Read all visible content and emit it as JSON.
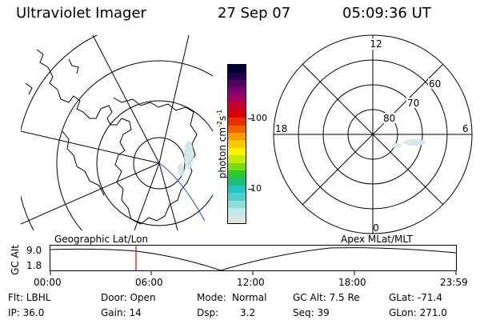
{
  "header": {
    "title": "Ultraviolet Imager",
    "date": "27 Sep 07",
    "time": "05:09:36 UT"
  },
  "colorbar": {
    "label": "photon cm-2s-1",
    "ticks": [
      "100",
      "10"
    ],
    "colors": [
      "#d9e3e3",
      "#bfe8e8",
      "#8fdada",
      "#4ed0d0",
      "#22c4c4",
      "#18c07a",
      "#2acb2a",
      "#78dc10",
      "#c8ea08",
      "#f8f400",
      "#f8c800",
      "#f89a00",
      "#f06200",
      "#e83000",
      "#d80000",
      "#c8002a",
      "#a8005a",
      "#80006f",
      "#50005f",
      "#20004a",
      "#000030"
    ]
  },
  "left_map": {
    "name": "geographic-map"
  },
  "right_map": {
    "labels": {
      "top": "12",
      "bottom": "0",
      "left": "18",
      "right": "6",
      "lat80": "80",
      "lat70": "70",
      "lat60": "60"
    }
  },
  "timeline": {
    "y_axis_label": "GC Alt",
    "y_ticks": [
      "9.0",
      "1.8"
    ],
    "left_title": "Geographic Lat/Lon",
    "right_title": "Apex MLat/MLT",
    "x_ticks": [
      "00:00",
      "06:00",
      "12:00",
      "18:00",
      "23:59"
    ],
    "current_time_marker": "05:09:36"
  },
  "footer": {
    "filt": "Flt: LBHL",
    "ip": "IP: 36.0",
    "door": "Door: Open",
    "gain": "Gain: 14",
    "mode_label": "Mode:",
    "mode_value": "Normal",
    "dsp_label": "Dsp:",
    "dsp_value": "3.2",
    "gcalt": "GC Alt: 7.5 Re",
    "seq": "Seq: 39",
    "glat": "GLat: -71.4",
    "glon": "GLon: 271.0"
  }
}
